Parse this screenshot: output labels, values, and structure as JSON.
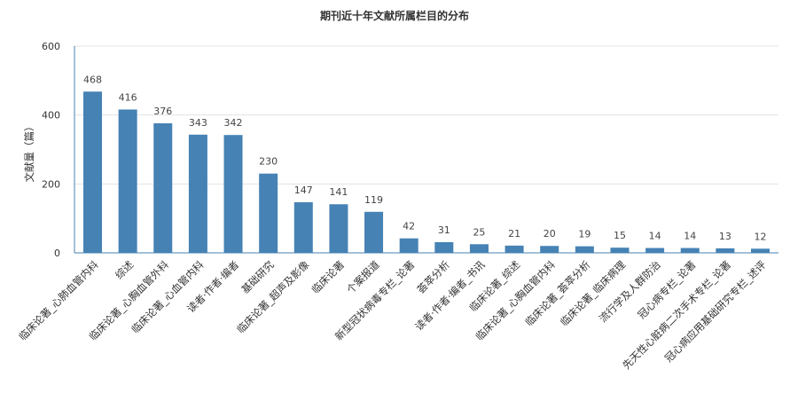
{
  "chart_data": {
    "type": "bar",
    "title": "期刊近十年文献所属栏目的分布",
    "ylabel": "文献量（篇）",
    "xlabel": "",
    "ylim": [
      0,
      600
    ],
    "yticks": [
      0,
      200,
      400,
      600
    ],
    "grid": true,
    "bar_color": "#4682b4",
    "categories": [
      "临床论著_心肺血管内科",
      "综述",
      "临床论著_心胸血管外科",
      "临床论著_心血管内科",
      "读者·作者·编者",
      "基础研究",
      "临床论著_超声及影像",
      "临床论著",
      "个案报道",
      "新型冠状病毒专栏_论著",
      "荟萃分析",
      "读者·作者·编者_书讯",
      "临床论著_综述",
      "临床论著_心胸血管内科",
      "临床论著_荟萃分析",
      "临床论著_临床病理",
      "流行学及人群防治",
      "冠心病专栏_论著",
      "先天性心脏病二次手术专栏_论著",
      "冠心病应用基础研究专栏_述评"
    ],
    "values": [
      468,
      416,
      376,
      343,
      342,
      230,
      147,
      141,
      119,
      42,
      31,
      25,
      21,
      20,
      19,
      15,
      14,
      14,
      13,
      12
    ]
  }
}
